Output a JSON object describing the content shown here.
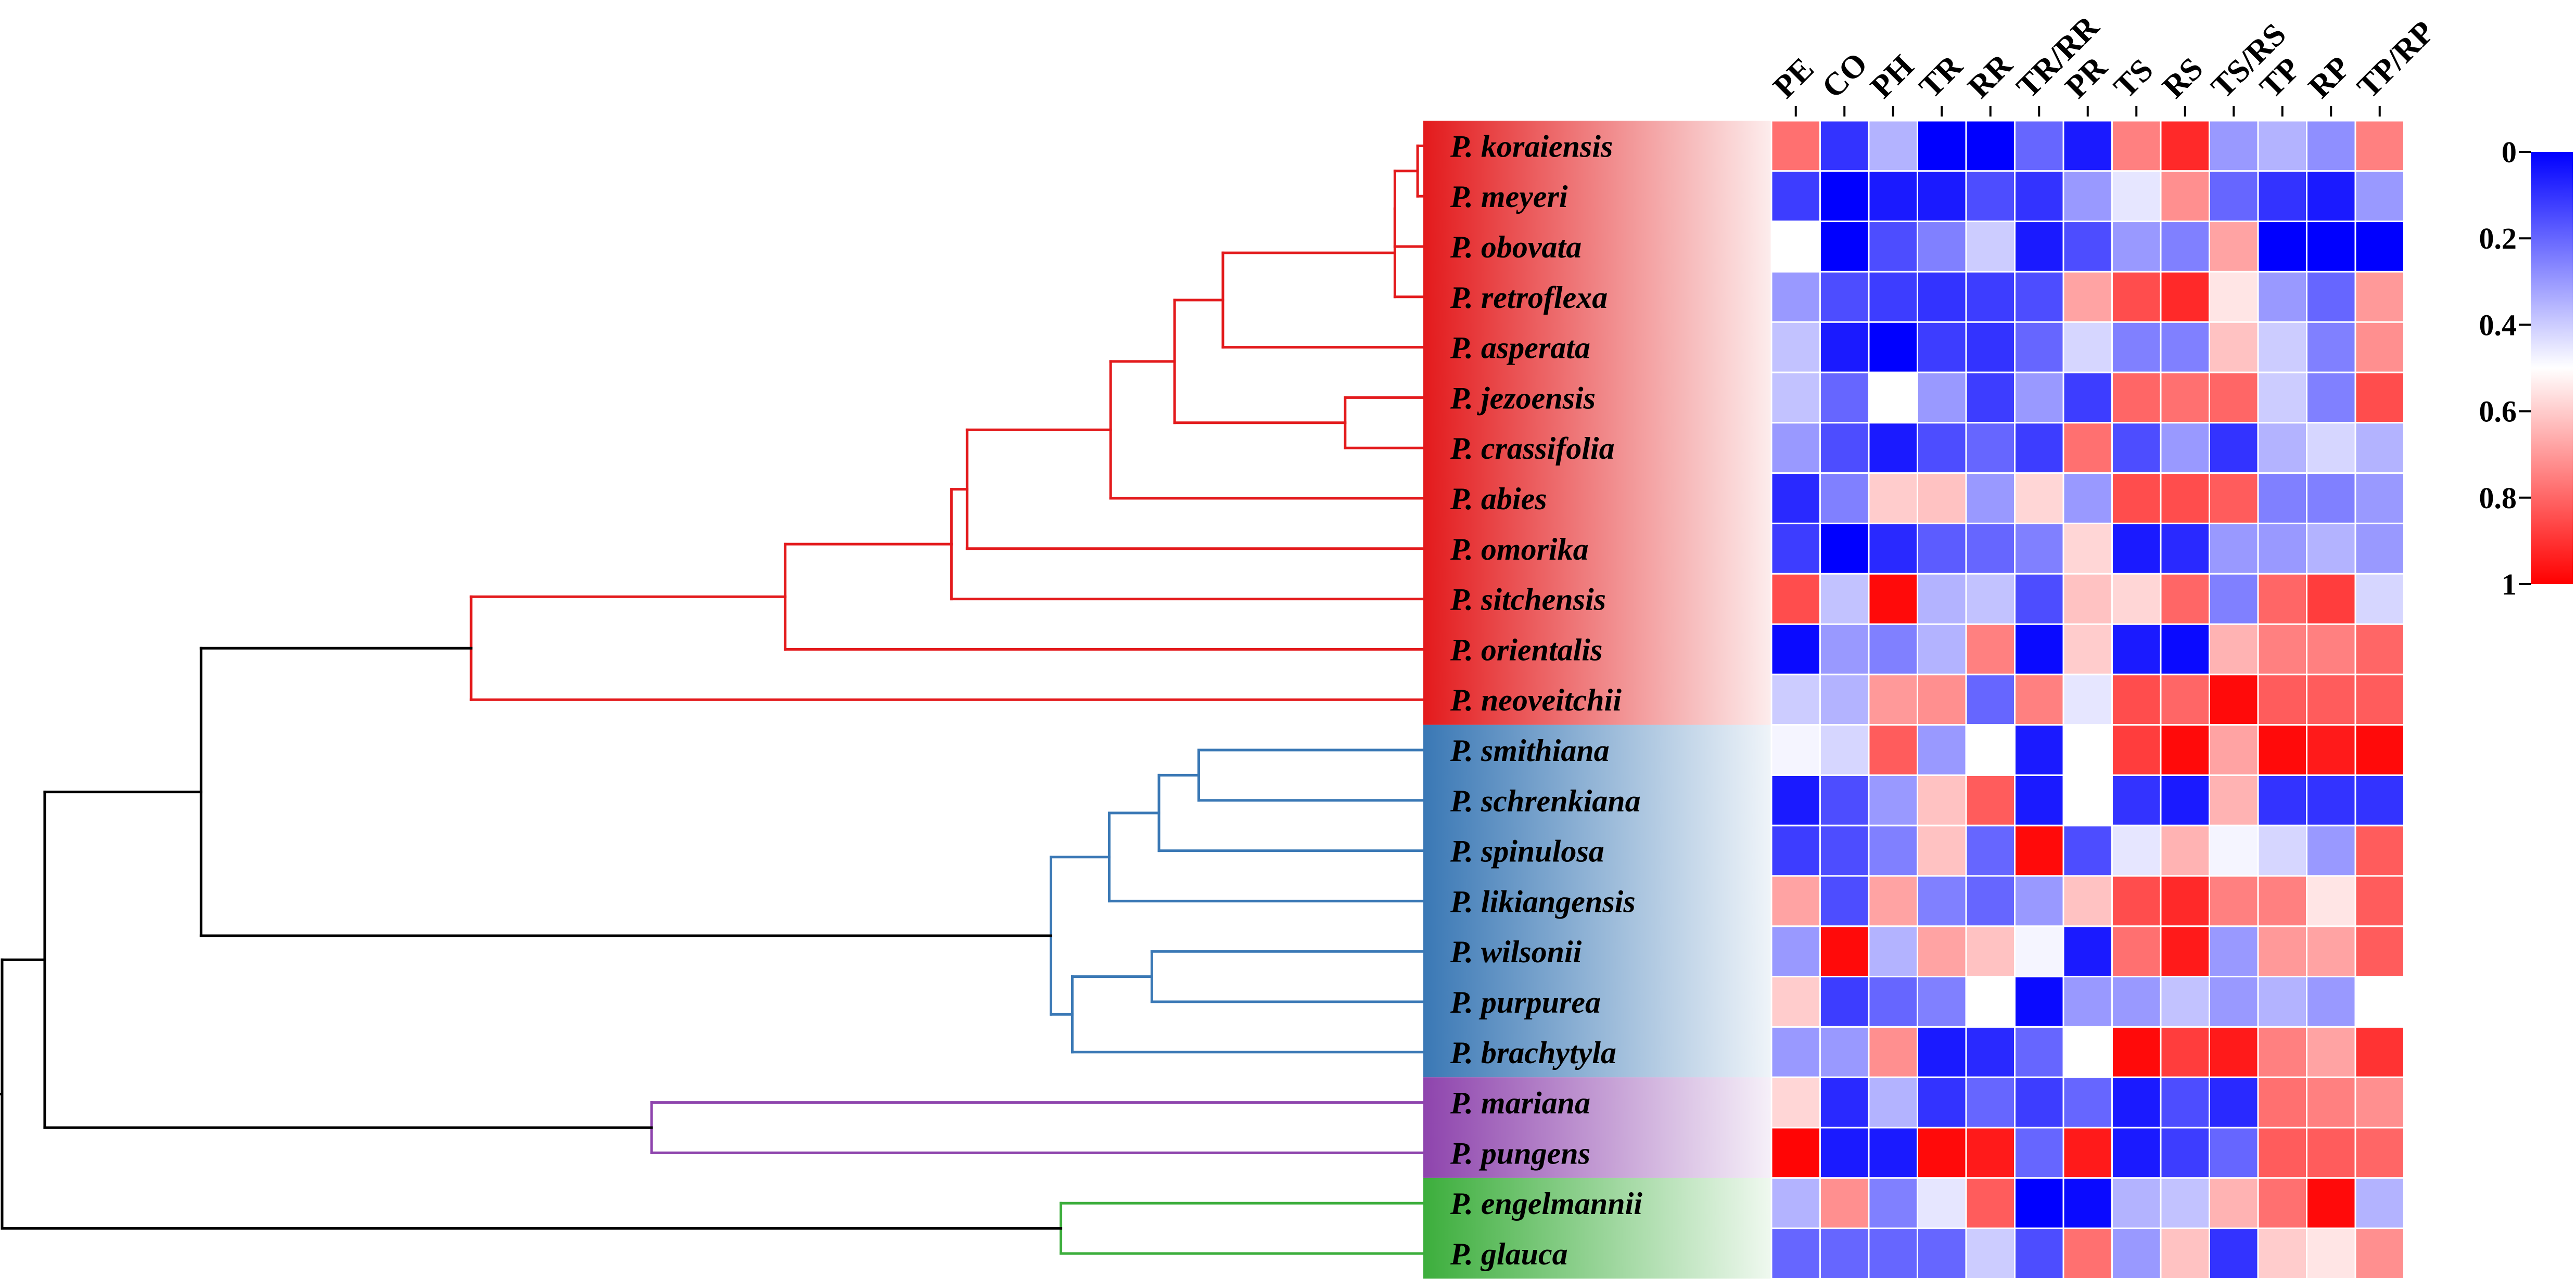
{
  "chart_data": {
    "type": "heatmap",
    "title": "",
    "columns": [
      "PE",
      "CO",
      "PH",
      "TR",
      "RR",
      "TR/RR",
      "PR",
      "TS",
      "RS",
      "TS/RS",
      "TP",
      "RP",
      "TP/RP"
    ],
    "rows": [
      "P. koraiensis",
      "P. meyeri",
      "P. obovata",
      "P. retroflexa",
      "P. asperata",
      "P. jezoensis",
      "P. crassifolia",
      "P. abies",
      "P. omorika",
      "P. sitchensis",
      "P. orientalis",
      "P. neoveitchii",
      "P. smithiana",
      "P. schrenkiana",
      "P. spinulosa",
      "P. likiangensis",
      "P. wilsonii",
      "P. purpurea",
      "P. brachytyla",
      "P. mariana",
      "P. pungens",
      "P. engelmannii",
      "P. glauca"
    ],
    "groups": [
      {
        "name": "clade-red",
        "color": "#e31a1c",
        "rows": [
          0,
          11
        ]
      },
      {
        "name": "clade-blue",
        "color": "#3a78b5",
        "rows": [
          12,
          18
        ]
      },
      {
        "name": "clade-purple",
        "color": "#8e44ad",
        "rows": [
          19,
          20
        ]
      },
      {
        "name": "clade-green",
        "color": "#3cae3c",
        "rows": [
          21,
          22
        ]
      }
    ],
    "values": [
      [
        0.78,
        0.1,
        0.35,
        0.0,
        0.0,
        0.2,
        0.05,
        0.75,
        0.92,
        0.3,
        0.35,
        0.28,
        0.75
      ],
      [
        0.12,
        0.0,
        0.05,
        0.05,
        0.15,
        0.1,
        0.3,
        0.45,
        0.72,
        0.2,
        0.1,
        0.05,
        0.3
      ],
      [
        0.5,
        0.0,
        0.15,
        0.25,
        0.4,
        0.05,
        0.15,
        0.3,
        0.25,
        0.68,
        0.0,
        0.0,
        0.0
      ],
      [
        0.3,
        0.15,
        0.12,
        0.1,
        0.12,
        0.15,
        0.68,
        0.85,
        0.92,
        0.55,
        0.3,
        0.2,
        0.7
      ],
      [
        0.38,
        0.05,
        0.0,
        0.12,
        0.1,
        0.2,
        0.42,
        0.25,
        0.25,
        0.62,
        0.4,
        0.25,
        0.72
      ],
      [
        0.38,
        0.2,
        0.5,
        0.3,
        0.12,
        0.3,
        0.12,
        0.8,
        0.78,
        0.8,
        0.4,
        0.25,
        0.85
      ],
      [
        0.3,
        0.15,
        0.05,
        0.15,
        0.2,
        0.12,
        0.78,
        0.15,
        0.3,
        0.1,
        0.35,
        0.42,
        0.35
      ],
      [
        0.08,
        0.25,
        0.6,
        0.62,
        0.3,
        0.58,
        0.3,
        0.85,
        0.85,
        0.82,
        0.25,
        0.25,
        0.3
      ],
      [
        0.12,
        0.0,
        0.08,
        0.18,
        0.2,
        0.25,
        0.58,
        0.05,
        0.08,
        0.3,
        0.3,
        0.35,
        0.3
      ],
      [
        0.85,
        0.38,
        0.98,
        0.35,
        0.38,
        0.15,
        0.62,
        0.58,
        0.8,
        0.25,
        0.8,
        0.88,
        0.42
      ],
      [
        0.02,
        0.3,
        0.25,
        0.35,
        0.75,
        0.02,
        0.6,
        0.05,
        0.02,
        0.65,
        0.75,
        0.75,
        0.8
      ],
      [
        0.4,
        0.35,
        0.7,
        0.72,
        0.2,
        0.75,
        0.45,
        0.85,
        0.8,
        0.98,
        0.82,
        0.82,
        0.82
      ],
      [
        0.48,
        0.42,
        0.82,
        0.3,
        0.5,
        0.05,
        0.5,
        0.88,
        0.98,
        0.68,
        0.98,
        0.95,
        0.98
      ],
      [
        0.05,
        0.15,
        0.3,
        0.62,
        0.82,
        0.05,
        0.5,
        0.1,
        0.05,
        0.65,
        0.1,
        0.1,
        0.1
      ],
      [
        0.12,
        0.15,
        0.25,
        0.62,
        0.2,
        0.98,
        0.15,
        0.45,
        0.65,
        0.48,
        0.42,
        0.3,
        0.82
      ],
      [
        0.68,
        0.15,
        0.68,
        0.25,
        0.2,
        0.3,
        0.62,
        0.85,
        0.92,
        0.75,
        0.75,
        0.55,
        0.82
      ],
      [
        0.3,
        0.98,
        0.35,
        0.68,
        0.62,
        0.48,
        0.05,
        0.78,
        0.95,
        0.3,
        0.7,
        0.68,
        0.82
      ],
      [
        0.6,
        0.12,
        0.2,
        0.25,
        0.5,
        0.02,
        0.3,
        0.3,
        0.38,
        0.3,
        0.35,
        0.3,
        0.5
      ],
      [
        0.3,
        0.3,
        0.72,
        0.05,
        0.08,
        0.2,
        0.5,
        0.98,
        0.88,
        0.95,
        0.75,
        0.68,
        0.9
      ],
      [
        0.58,
        0.08,
        0.35,
        0.1,
        0.2,
        0.12,
        0.2,
        0.05,
        0.15,
        0.08,
        0.78,
        0.75,
        0.72
      ],
      [
        0.99,
        0.05,
        0.05,
        0.98,
        0.95,
        0.2,
        0.95,
        0.05,
        0.12,
        0.2,
        0.82,
        0.82,
        0.8
      ],
      [
        0.35,
        0.72,
        0.25,
        0.45,
        0.82,
        0.0,
        0.02,
        0.35,
        0.38,
        0.65,
        0.78,
        0.98,
        0.35
      ],
      [
        0.2,
        0.2,
        0.2,
        0.2,
        0.4,
        0.15,
        0.78,
        0.3,
        0.62,
        0.1,
        0.6,
        0.55,
        0.72
      ]
    ],
    "colorbar": {
      "min": 0,
      "max": 1,
      "ticks": [
        0,
        0.2,
        0.4,
        0.6,
        0.8,
        1
      ],
      "tick_labels": [
        "0",
        "0.2",
        "0.4",
        "0.6",
        "0.8",
        "1"
      ],
      "colors": [
        "#0000ff",
        "#ffffff",
        "#ff0000"
      ]
    },
    "dendrogram": {
      "leaves": 23,
      "merges": [
        {
          "id": "n1",
          "children": [
            "L0",
            "L1"
          ],
          "height": 0.996,
          "group": 0
        },
        {
          "id": "n2",
          "children": [
            "n1",
            "L2"
          ],
          "height": 0.98,
          "group": 0
        },
        {
          "id": "n3",
          "children": [
            "n2",
            "L3"
          ],
          "height": 0.98,
          "group": 0
        },
        {
          "id": "n4",
          "children": [
            "L5",
            "L6"
          ],
          "height": 0.945,
          "group": 0
        },
        {
          "id": "n5",
          "children": [
            "n3",
            "L4"
          ],
          "height": 0.859,
          "group": 0
        },
        {
          "id": "n6",
          "children": [
            "n5",
            "n4"
          ],
          "height": 0.825,
          "group": 0
        },
        {
          "id": "n7",
          "children": [
            "n6",
            "L7"
          ],
          "height": 0.78,
          "group": 0
        },
        {
          "id": "n8",
          "children": [
            "n7",
            "L8"
          ],
          "height": 0.679,
          "group": 0
        },
        {
          "id": "n9",
          "children": [
            "n8",
            "L9"
          ],
          "height": 0.668,
          "group": 0
        },
        {
          "id": "n10",
          "children": [
            "n9",
            "L10"
          ],
          "height": 0.551,
          "group": 0
        },
        {
          "id": "n11",
          "children": [
            "n10",
            "L11"
          ],
          "height": 0.33,
          "group": 0
        },
        {
          "id": "n12",
          "children": [
            "L12",
            "L13"
          ],
          "height": 0.842,
          "group": 1
        },
        {
          "id": "n13",
          "children": [
            "n12",
            "L14"
          ],
          "height": 0.814,
          "group": 1
        },
        {
          "id": "n14",
          "children": [
            "n13",
            "L15"
          ],
          "height": 0.779,
          "group": 1
        },
        {
          "id": "n15",
          "children": [
            "L16",
            "L17"
          ],
          "height": 0.809,
          "group": 1
        },
        {
          "id": "n16",
          "children": [
            "n15",
            "L18"
          ],
          "height": 0.753,
          "group": 1
        },
        {
          "id": "n17",
          "children": [
            "n14",
            "n16"
          ],
          "height": 0.738,
          "group": 1
        },
        {
          "id": "n18",
          "children": [
            "n11",
            "n17"
          ],
          "height": 0.14,
          "group": -1
        },
        {
          "id": "n19",
          "children": [
            "L19",
            "L20"
          ],
          "height": 0.457,
          "group": 2
        },
        {
          "id": "n20",
          "children": [
            "n18",
            "n19"
          ],
          "height": 0.03,
          "group": -1
        },
        {
          "id": "n21",
          "children": [
            "L21",
            "L22"
          ],
          "height": 0.745,
          "group": 3
        },
        {
          "id": "n22",
          "children": [
            "n20",
            "n21"
          ],
          "height": 0.0,
          "group": -1
        }
      ]
    }
  }
}
